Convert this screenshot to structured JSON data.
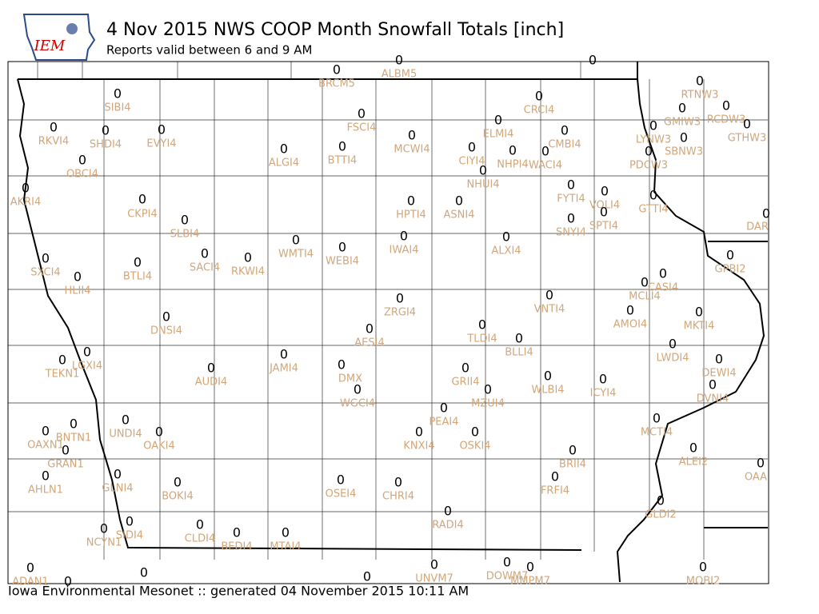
{
  "header": {
    "logo": "IEM",
    "title": "4 Nov 2015 NWS COOP Month Snowfall Totals [inch]",
    "subtitle": "Reports valid between 6 and 9 AM"
  },
  "stations": [
    {
      "id": "BRCM5",
      "value": 0
    },
    {
      "id": "ALBM5",
      "value": 0
    },
    {
      "id": "SIBI4",
      "value": 0
    },
    {
      "id": "CRCI4",
      "value": 0
    },
    {
      "id": "RTNW3",
      "value": 0
    },
    {
      "id": "GMIW3",
      "value": 0
    },
    {
      "id": "RCDW3",
      "value": 0
    },
    {
      "id": "GTHW3",
      "value": 0
    },
    {
      "id": "LYNW3",
      "value": 0
    },
    {
      "id": "SBNW3",
      "value": 0
    },
    {
      "id": "PDCW3",
      "value": 0
    },
    {
      "id": "RKVI4",
      "value": 0
    },
    {
      "id": "SHDI4",
      "value": 0
    },
    {
      "id": "EVYI4",
      "value": 0
    },
    {
      "id": "FSCI4",
      "value": 0
    },
    {
      "id": "ELMI4",
      "value": 0
    },
    {
      "id": "CMBI4",
      "value": 0
    },
    {
      "id": "MCWI4",
      "value": 0
    },
    {
      "id": "CIYI4",
      "value": 0
    },
    {
      "id": "NHPI4",
      "value": 0
    },
    {
      "id": "WACI4",
      "value": 0
    },
    {
      "id": "ALGI4",
      "value": 0
    },
    {
      "id": "BTTI4",
      "value": 0
    },
    {
      "id": "OBCI4",
      "value": 0
    },
    {
      "id": "NHUI4",
      "value": 0
    },
    {
      "id": "AKRI4",
      "value": 0
    },
    {
      "id": "FYTI4",
      "value": 0
    },
    {
      "id": "VOLI4",
      "value": 0
    },
    {
      "id": "GTTI4",
      "value": 0
    },
    {
      "id": "CKPI4",
      "value": 0
    },
    {
      "id": "HPTI4",
      "value": 0
    },
    {
      "id": "ASNI4",
      "value": 0
    },
    {
      "id": "SPTI4",
      "value": 0
    },
    {
      "id": "SNYI4",
      "value": 0
    },
    {
      "id": "DAR",
      "value": 0
    },
    {
      "id": "SLBI4",
      "value": 0
    },
    {
      "id": "IWAI4",
      "value": 0
    },
    {
      "id": "ALXI4",
      "value": 0
    },
    {
      "id": "WMTI4",
      "value": 0
    },
    {
      "id": "WEBI4",
      "value": 0
    },
    {
      "id": "SXCI4",
      "value": 0
    },
    {
      "id": "BTLI4",
      "value": 0
    },
    {
      "id": "SACI4",
      "value": 0
    },
    {
      "id": "RKWI4",
      "value": 0
    },
    {
      "id": "GPBI2",
      "value": 0
    },
    {
      "id": "HLII4",
      "value": 0
    },
    {
      "id": "CASI4",
      "value": 0
    },
    {
      "id": "MCLI4",
      "value": 0
    },
    {
      "id": "VNTI4",
      "value": 0
    },
    {
      "id": "ZRGI4",
      "value": 0
    },
    {
      "id": "AMOI4",
      "value": 0
    },
    {
      "id": "MKTI4",
      "value": 0
    },
    {
      "id": "DNSI4",
      "value": 0
    },
    {
      "id": "TLDI4",
      "value": 0
    },
    {
      "id": "AESI4",
      "value": 0
    },
    {
      "id": "BLLI4",
      "value": 0
    },
    {
      "id": "LWDI4",
      "value": 0
    },
    {
      "id": "JAMI4",
      "value": 0
    },
    {
      "id": "LGXI4",
      "value": 0
    },
    {
      "id": "TEKN1",
      "value": 0
    },
    {
      "id": "DEWI4",
      "value": 0
    },
    {
      "id": "DMX",
      "value": 0
    },
    {
      "id": "AUDI4",
      "value": 0
    },
    {
      "id": "GRII4",
      "value": 0
    },
    {
      "id": "WLBI4",
      "value": 0
    },
    {
      "id": "ICYI4",
      "value": 0
    },
    {
      "id": "WGCI4",
      "value": 0
    },
    {
      "id": "MZUI4",
      "value": 0
    },
    {
      "id": "DVNI4",
      "value": 0
    },
    {
      "id": "PEAI4",
      "value": 0
    },
    {
      "id": "UNDI4",
      "value": 0
    },
    {
      "id": "BNTN1",
      "value": 0
    },
    {
      "id": "MCTI4",
      "value": 0
    },
    {
      "id": "OAKI4",
      "value": 0
    },
    {
      "id": "KNXI4",
      "value": 0
    },
    {
      "id": "OSKI4",
      "value": 0
    },
    {
      "id": "OAXN1",
      "value": 0
    },
    {
      "id": "GRAN1",
      "value": 0
    },
    {
      "id": "BRII4",
      "value": 0
    },
    {
      "id": "ALEI2",
      "value": 0
    },
    {
      "id": "OAA",
      "value": 0
    },
    {
      "id": "GLNI4",
      "value": 0
    },
    {
      "id": "AHLN1",
      "value": 0
    },
    {
      "id": "FRFI4",
      "value": 0
    },
    {
      "id": "BOKI4",
      "value": 0
    },
    {
      "id": "OSEI4",
      "value": 0
    },
    {
      "id": "CHRI4",
      "value": 0
    },
    {
      "id": "GLDI2",
      "value": 0
    },
    {
      "id": "RADI4",
      "value": 0
    },
    {
      "id": "SIDI4",
      "value": 0
    },
    {
      "id": "CLDI4",
      "value": 0
    },
    {
      "id": "BEDI4",
      "value": 0
    },
    {
      "id": "MTAI4",
      "value": 0
    },
    {
      "id": "NCYN1",
      "value": 0
    },
    {
      "id": "UNVM7",
      "value": 0
    },
    {
      "id": "DOWM7",
      "value": 0
    },
    {
      "id": "MMPM7",
      "value": 0
    },
    {
      "id": "MOBI2",
      "value": 0
    },
    {
      "id": "ADAN1",
      "value": 0
    },
    {
      "id": null,
      "value": 0
    },
    {
      "id": null,
      "value": 0
    },
    {
      "id": null,
      "value": 0
    },
    {
      "id": null,
      "value": 0
    }
  ],
  "footer": "Iowa Environmental Mesonet :: generated 04 November 2015 10:11 AM"
}
